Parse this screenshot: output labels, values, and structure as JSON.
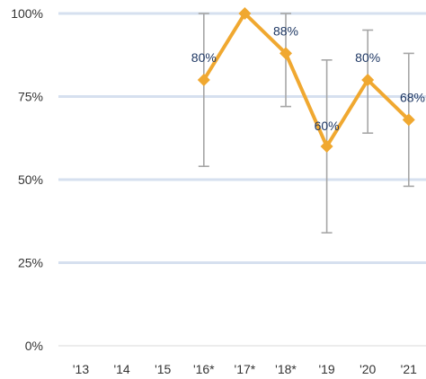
{
  "chart_data": {
    "type": "line",
    "title": "",
    "xlabel": "",
    "ylabel": "",
    "x": [
      "'13",
      "'14",
      "'15",
      "'16*",
      "'17*",
      "'18*",
      "'19",
      "'20",
      "'21"
    ],
    "y_ticks": [
      "0%",
      "25%",
      "50%",
      "75%",
      "100%"
    ],
    "ylim": [
      0,
      100
    ],
    "grid": true,
    "series": [
      {
        "values": [
          null,
          null,
          null,
          80,
          100,
          88,
          60,
          80,
          68
        ],
        "error_low": [
          null,
          null,
          null,
          54,
          null,
          72,
          34,
          64,
          48
        ],
        "error_high": [
          null,
          null,
          null,
          100,
          null,
          100,
          86,
          95,
          88
        ],
        "data_labels": [
          "",
          "",
          "",
          "80%",
          "",
          "88%",
          "60%",
          "80%",
          "68%"
        ]
      }
    ],
    "colors": {
      "line": "#f0a830",
      "error_bar": "#a6a6a6",
      "grid": "#d6e0ef",
      "data_label": "#1f3864"
    }
  }
}
